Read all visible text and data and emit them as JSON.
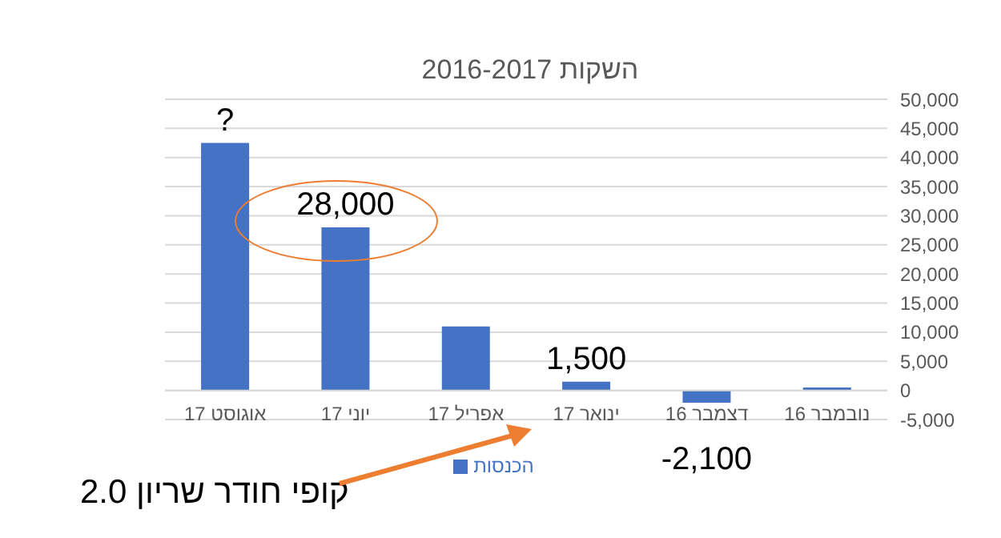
{
  "chart_data": {
    "type": "bar",
    "title": "השקות 2016-2017",
    "categories": [
      "אוגוסט 17",
      "יוני 17",
      "אפריל 17",
      "ינואר 17",
      "דצמבר 16",
      "נובמבר 16"
    ],
    "series": [
      {
        "name": "הכנסות",
        "color": "#4472c4",
        "values": [
          42500,
          28000,
          11000,
          1500,
          -2100,
          500
        ],
        "value_labels": [
          "?",
          "28,000",
          null,
          "1,500",
          "-2,100",
          null
        ]
      }
    ],
    "ylim": [
      -5000,
      50000
    ],
    "yticks": [
      {
        "value": -5000,
        "label": "-5,000"
      },
      0,
      {
        "value": 5000,
        "label": "5,000"
      },
      {
        "value": 10000,
        "label": "10,000"
      },
      {
        "value": 15000,
        "label": "15,000"
      },
      {
        "value": 20000,
        "label": "20,000"
      },
      {
        "value": 25000,
        "label": "25,000"
      },
      {
        "value": 30000,
        "label": "30,000"
      },
      {
        "value": 35000,
        "label": "35,000"
      },
      {
        "value": 40000,
        "label": "40,000"
      },
      {
        "value": 45000,
        "label": "45,000"
      },
      {
        "value": 50000,
        "label": "50,000"
      }
    ],
    "grid": "y",
    "legend": "bottom",
    "annotations": [
      "קופי חודר שריון 2.0"
    ]
  }
}
